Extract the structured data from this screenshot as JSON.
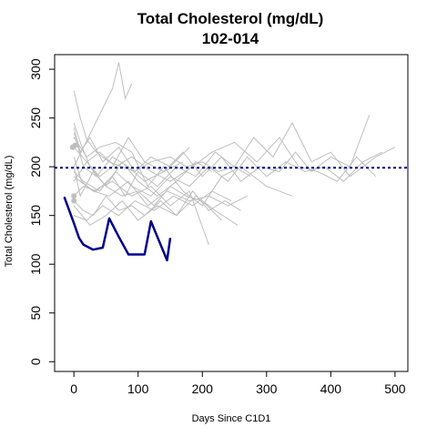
{
  "chart_data": {
    "type": "line",
    "title": "Total Cholesterol (mg/dL)",
    "subtitle": "102-014",
    "xlabel": "Days Since C1D1",
    "ylabel": "Total Cholesterol (mg/dL)",
    "xlim": [
      -30,
      520
    ],
    "ylim": [
      -10,
      315
    ],
    "x_ticks": [
      0,
      100,
      200,
      300,
      400,
      500
    ],
    "y_ticks": [
      0,
      50,
      100,
      150,
      200,
      250,
      300
    ],
    "reference_line": {
      "y": 199,
      "style": "dotted",
      "color": "#00007f"
    },
    "highlight_color": "#00008b",
    "background_color": "#bebebe",
    "highlight_series": {
      "name": "102-014",
      "x": [
        -15,
        0,
        8,
        15,
        30,
        45,
        55,
        70,
        85,
        110,
        120,
        145,
        150
      ],
      "y": [
        169,
        142,
        127,
        120,
        115,
        117,
        147,
        128,
        110,
        110,
        144,
        104,
        127
      ]
    },
    "background_series": [
      {
        "x": [
          0,
          10,
          20,
          35,
          55,
          75,
          95,
          120,
          150,
          175,
          200,
          225,
          250,
          275
        ],
        "y": [
          278,
          250,
          228,
          215,
          205,
          200,
          195,
          205,
          210,
          200,
          205,
          195,
          200,
          190
        ]
      },
      {
        "x": [
          0,
          15,
          30,
          45,
          60,
          70,
          80,
          90
        ],
        "y": [
          200,
          220,
          240,
          260,
          280,
          307,
          270,
          285
        ]
      },
      {
        "x": [
          0,
          20,
          40,
          60,
          85,
          110,
          140,
          170,
          200,
          230,
          260,
          290,
          320,
          345,
          370,
          400,
          430,
          460
        ],
        "y": [
          220,
          205,
          190,
          200,
          230,
          205,
          195,
          215,
          190,
          210,
          185,
          200,
          195,
          215,
          195,
          210,
          200,
          253
        ]
      },
      {
        "x": [
          0,
          15,
          35,
          60,
          80,
          100,
          130,
          160,
          190,
          220,
          250,
          280,
          310,
          340,
          370,
          400,
          430,
          470,
          500
        ],
        "y": [
          170,
          180,
          175,
          190,
          170,
          195,
          180,
          200,
          190,
          215,
          200,
          230,
          210,
          245,
          205,
          215,
          190,
          210,
          220
        ]
      },
      {
        "x": [
          0,
          10,
          25,
          50,
          75,
          100,
          130,
          160,
          190,
          215
        ],
        "y": [
          245,
          225,
          200,
          180,
          205,
          185,
          170,
          185,
          205,
          195
        ]
      },
      {
        "x": [
          0,
          20,
          40,
          65,
          90,
          115,
          140,
          170,
          200,
          230,
          260,
          300,
          340
        ],
        "y": [
          230,
          210,
          220,
          225,
          215,
          180,
          200,
          175,
          160,
          190,
          200,
          180,
          170
        ]
      },
      {
        "x": [
          0,
          15,
          30,
          50,
          70,
          90,
          110,
          135,
          160,
          185,
          210,
          235,
          260
        ],
        "y": [
          165,
          155,
          150,
          170,
          155,
          160,
          150,
          165,
          150,
          175,
          155,
          165,
          155
        ]
      },
      {
        "x": [
          0,
          12,
          30,
          55,
          85,
          115,
          145,
          180,
          210,
          240,
          270
        ],
        "y": [
          210,
          185,
          175,
          170,
          185,
          160,
          175,
          165,
          170,
          160,
          170
        ]
      },
      {
        "x": [
          0,
          20,
          45,
          70,
          95,
          125,
          155,
          185,
          215,
          245
        ],
        "y": [
          150,
          145,
          160,
          150,
          165,
          155,
          170,
          160,
          175,
          165
        ]
      },
      {
        "x": [
          0,
          25,
          50,
          75,
          100,
          130,
          160,
          190,
          220,
          255
        ],
        "y": [
          160,
          140,
          150,
          165,
          145,
          160,
          150,
          170,
          155,
          140
        ]
      },
      {
        "x": [
          0,
          30,
          60,
          90,
          120,
          150,
          180,
          210
        ],
        "y": [
          190,
          175,
          185,
          170,
          180,
          160,
          175,
          120
        ]
      },
      {
        "x": [
          0,
          15,
          35,
          60,
          85,
          110,
          140,
          170
        ],
        "y": [
          235,
          200,
          190,
          210,
          200,
          185,
          195,
          205
        ]
      },
      {
        "x": [
          0,
          20,
          40,
          65,
          90,
          120,
          150,
          185,
          215,
          250,
          285,
          320,
          350,
          380,
          410,
          440,
          470
        ],
        "y": [
          185,
          205,
          215,
          200,
          210,
          195,
          185,
          200,
          215,
          225,
          205,
          230,
          200,
          195,
          185,
          210,
          190
        ]
      },
      {
        "x": [
          0,
          10,
          30,
          50,
          75,
          100,
          125,
          150,
          175,
          200,
          230
        ],
        "y": [
          200,
          170,
          195,
          180,
          170,
          175,
          160,
          180,
          170,
          165,
          145
        ]
      },
      {
        "x": [
          0,
          15,
          40,
          65,
          90,
          120,
          150,
          180,
          210,
          240,
          270,
          300,
          330,
          360,
          390,
          420,
          450,
          480
        ],
        "y": [
          195,
          185,
          175,
          195,
          180,
          170,
          190,
          180,
          200,
          185,
          210,
          190,
          205,
          195,
          200,
          185,
          205,
          215
        ]
      },
      {
        "x": [
          0,
          10,
          25,
          45,
          70,
          95,
          120,
          150,
          180
        ],
        "y": [
          240,
          215,
          230,
          205,
          220,
          195,
          210,
          200,
          220
        ]
      }
    ],
    "markers": [
      {
        "x": -2,
        "y": 220
      },
      {
        "x": 0,
        "y": 170
      },
      {
        "x": 0,
        "y": 165
      },
      {
        "x": 2,
        "y": 222
      }
    ]
  }
}
